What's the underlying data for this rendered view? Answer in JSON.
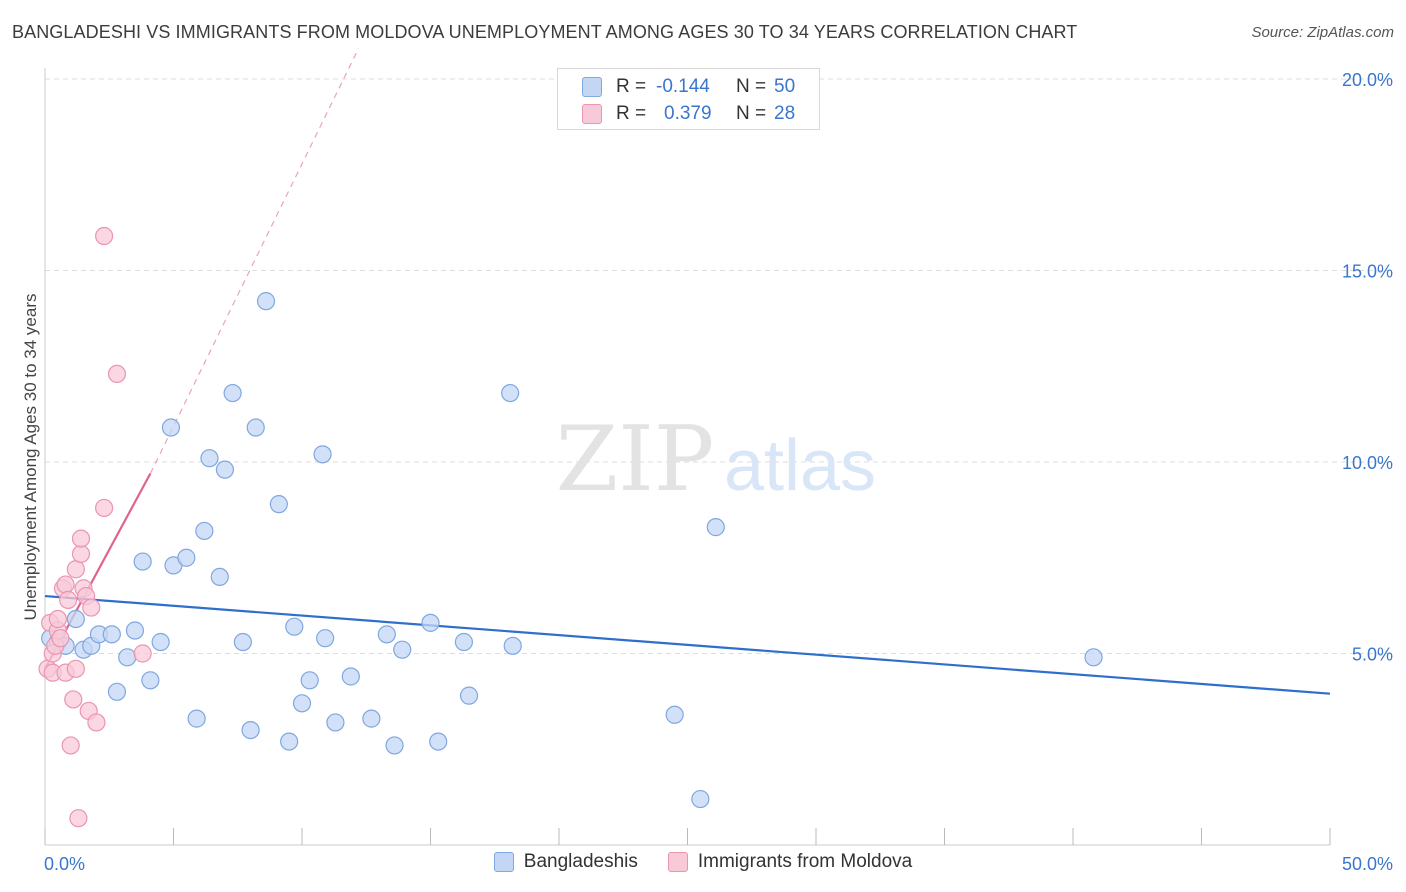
{
  "title": "BANGLADESHI VS IMMIGRANTS FROM MOLDOVA UNEMPLOYMENT AMONG AGES 30 TO 34 YEARS CORRELATION CHART",
  "source": "Source: ZipAtlas.com",
  "watermark": {
    "zip": "ZIP",
    "atlas": "atlas"
  },
  "legend": {
    "r_label": "R =",
    "n_label": "N =",
    "series": [
      {
        "name": "Bangladeshis",
        "r": "-0.144",
        "n": "50"
      },
      {
        "name": "Immigrants from Moldova",
        "r": "0.379",
        "n": "28"
      }
    ]
  },
  "colors": {
    "blue_fill": "#c3d7f5",
    "blue_stroke": "#7fa7e0",
    "blue_line": "#2e6fcc",
    "pink_fill": "#f8cad8",
    "pink_stroke": "#eb95b0",
    "pink_line": "#e0638e",
    "tick_label": "#3a76cc"
  },
  "chart_data": {
    "type": "scatter",
    "title": "BANGLADESHI VS IMMIGRANTS FROM MOLDOVA UNEMPLOYMENT AMONG AGES 30 TO 34 YEARS CORRELATION CHART",
    "xlabel": "",
    "ylabel": "Unemployment Among Ages 30 to 34 years",
    "xlim": [
      0,
      50
    ],
    "ylim": [
      0,
      20.5
    ],
    "x_tick_labels": [
      "0.0%",
      "50.0%"
    ],
    "y_ticks": [
      5,
      10,
      15,
      20
    ],
    "y_tick_labels": [
      "5.0%",
      "10.0%",
      "15.0%",
      "20.0%"
    ],
    "grid": true,
    "legend_position": "top-center",
    "series": [
      {
        "name": "Bangladeshis",
        "color": "blue",
        "trend": {
          "x": [
            0,
            50
          ],
          "y": [
            6.5,
            3.95
          ],
          "style": "solid"
        },
        "points": [
          {
            "x": 0.2,
            "y": 5.4
          },
          {
            "x": 0.5,
            "y": 5.3
          },
          {
            "x": 0.8,
            "y": 5.2
          },
          {
            "x": 1.2,
            "y": 5.9
          },
          {
            "x": 1.5,
            "y": 5.1
          },
          {
            "x": 1.8,
            "y": 5.2
          },
          {
            "x": 2.1,
            "y": 5.5
          },
          {
            "x": 2.6,
            "y": 5.5
          },
          {
            "x": 2.8,
            "y": 4.0
          },
          {
            "x": 3.2,
            "y": 4.9
          },
          {
            "x": 3.5,
            "y": 5.6
          },
          {
            "x": 3.8,
            "y": 7.4
          },
          {
            "x": 4.1,
            "y": 4.3
          },
          {
            "x": 4.5,
            "y": 5.3
          },
          {
            "x": 4.9,
            "y": 10.9
          },
          {
            "x": 5.0,
            "y": 7.3
          },
          {
            "x": 5.5,
            "y": 7.5
          },
          {
            "x": 5.9,
            "y": 3.3
          },
          {
            "x": 6.2,
            "y": 8.2
          },
          {
            "x": 6.4,
            "y": 10.1
          },
          {
            "x": 6.8,
            "y": 7.0
          },
          {
            "x": 7.0,
            "y": 9.8
          },
          {
            "x": 7.3,
            "y": 11.8
          },
          {
            "x": 7.7,
            "y": 5.3
          },
          {
            "x": 8.0,
            "y": 3.0
          },
          {
            "x": 8.2,
            "y": 10.9
          },
          {
            "x": 8.6,
            "y": 14.2
          },
          {
            "x": 9.1,
            "y": 8.9
          },
          {
            "x": 9.5,
            "y": 2.7
          },
          {
            "x": 9.7,
            "y": 5.7
          },
          {
            "x": 10.0,
            "y": 3.7
          },
          {
            "x": 10.3,
            "y": 4.3
          },
          {
            "x": 10.8,
            "y": 10.2
          },
          {
            "x": 10.9,
            "y": 5.4
          },
          {
            "x": 11.3,
            "y": 3.2
          },
          {
            "x": 11.9,
            "y": 4.4
          },
          {
            "x": 12.7,
            "y": 3.3
          },
          {
            "x": 13.3,
            "y": 5.5
          },
          {
            "x": 13.6,
            "y": 2.6
          },
          {
            "x": 13.9,
            "y": 5.1
          },
          {
            "x": 15.0,
            "y": 5.8
          },
          {
            "x": 15.3,
            "y": 2.7
          },
          {
            "x": 16.3,
            "y": 5.3
          },
          {
            "x": 16.5,
            "y": 3.9
          },
          {
            "x": 18.1,
            "y": 11.8
          },
          {
            "x": 18.2,
            "y": 5.2
          },
          {
            "x": 24.5,
            "y": 3.4
          },
          {
            "x": 25.5,
            "y": 1.2
          },
          {
            "x": 26.1,
            "y": 8.3
          },
          {
            "x": 40.8,
            "y": 4.9
          }
        ]
      },
      {
        "name": "Immigrants from Moldova",
        "color": "pink",
        "trend": {
          "x": [
            0,
            4.1
          ],
          "y": [
            4.6,
            9.7
          ],
          "style": "solid",
          "extended": {
            "x": [
              4.1,
              12.2
            ],
            "y": [
              9.7,
              20.8
            ],
            "style": "dashed"
          }
        },
        "points": [
          {
            "x": 0.1,
            "y": 4.6
          },
          {
            "x": 0.2,
            "y": 5.8
          },
          {
            "x": 0.3,
            "y": 4.5
          },
          {
            "x": 0.3,
            "y": 5.0
          },
          {
            "x": 0.4,
            "y": 5.2
          },
          {
            "x": 0.5,
            "y": 5.6
          },
          {
            "x": 0.5,
            "y": 5.9
          },
          {
            "x": 0.6,
            "y": 5.4
          },
          {
            "x": 0.7,
            "y": 6.7
          },
          {
            "x": 0.8,
            "y": 4.5
          },
          {
            "x": 0.8,
            "y": 6.8
          },
          {
            "x": 0.9,
            "y": 6.4
          },
          {
            "x": 1.0,
            "y": 2.6
          },
          {
            "x": 1.1,
            "y": 3.8
          },
          {
            "x": 1.2,
            "y": 4.6
          },
          {
            "x": 1.2,
            "y": 7.2
          },
          {
            "x": 1.3,
            "y": 0.7
          },
          {
            "x": 1.4,
            "y": 7.6
          },
          {
            "x": 1.4,
            "y": 8.0
          },
          {
            "x": 1.5,
            "y": 6.7
          },
          {
            "x": 1.6,
            "y": 6.5
          },
          {
            "x": 1.7,
            "y": 3.5
          },
          {
            "x": 1.8,
            "y": 6.2
          },
          {
            "x": 2.0,
            "y": 3.2
          },
          {
            "x": 2.3,
            "y": 8.8
          },
          {
            "x": 2.3,
            "y": 15.9
          },
          {
            "x": 2.8,
            "y": 12.3
          },
          {
            "x": 3.8,
            "y": 5.0
          }
        ]
      }
    ]
  }
}
